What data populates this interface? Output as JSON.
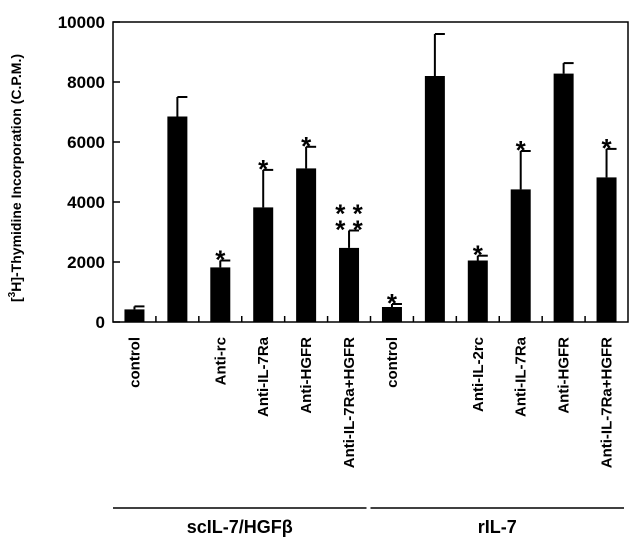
{
  "chart_data": {
    "type": "bar",
    "ylabel_prefix": "[",
    "ylabel_sup": "3",
    "ylabel_rest": "H]-Thymidine Incorporation (C.P.M.)",
    "ylim": [
      0,
      10000
    ],
    "yticks": [
      "0",
      "2000",
      "4000",
      "6000",
      "8000",
      "10000"
    ],
    "ytick_values": [
      0,
      2000,
      4000,
      6000,
      8000,
      10000
    ],
    "grid": false,
    "bar_color": "#000000",
    "categories": [
      "control",
      "",
      "Anti-rc",
      "Anti-IL-7Ra",
      "Anti-HGFR",
      "Anti-IL-7Ra+HGFR",
      "control",
      "",
      "Anti-IL-2rc",
      "Anti-IL-7Ra",
      "Anti-HGFR",
      "Anti-IL-7Ra+HGFR"
    ],
    "values": [
      420,
      6850,
      1820,
      3820,
      5120,
      2470,
      500,
      8200,
      2050,
      4420,
      8280,
      4820
    ],
    "errors": [
      100,
      650,
      230,
      1250,
      720,
      580,
      100,
      1400,
      160,
      1280,
      350,
      950
    ],
    "significance": [
      "",
      "",
      "*",
      "*",
      "*",
      "* *\n* *",
      "*",
      "",
      "*",
      "*",
      "",
      "*"
    ],
    "groups": [
      {
        "label": "scIL-7/HGFβ",
        "start": 0,
        "end": 5
      },
      {
        "label": "rIL-7",
        "start": 6,
        "end": 11
      }
    ]
  }
}
